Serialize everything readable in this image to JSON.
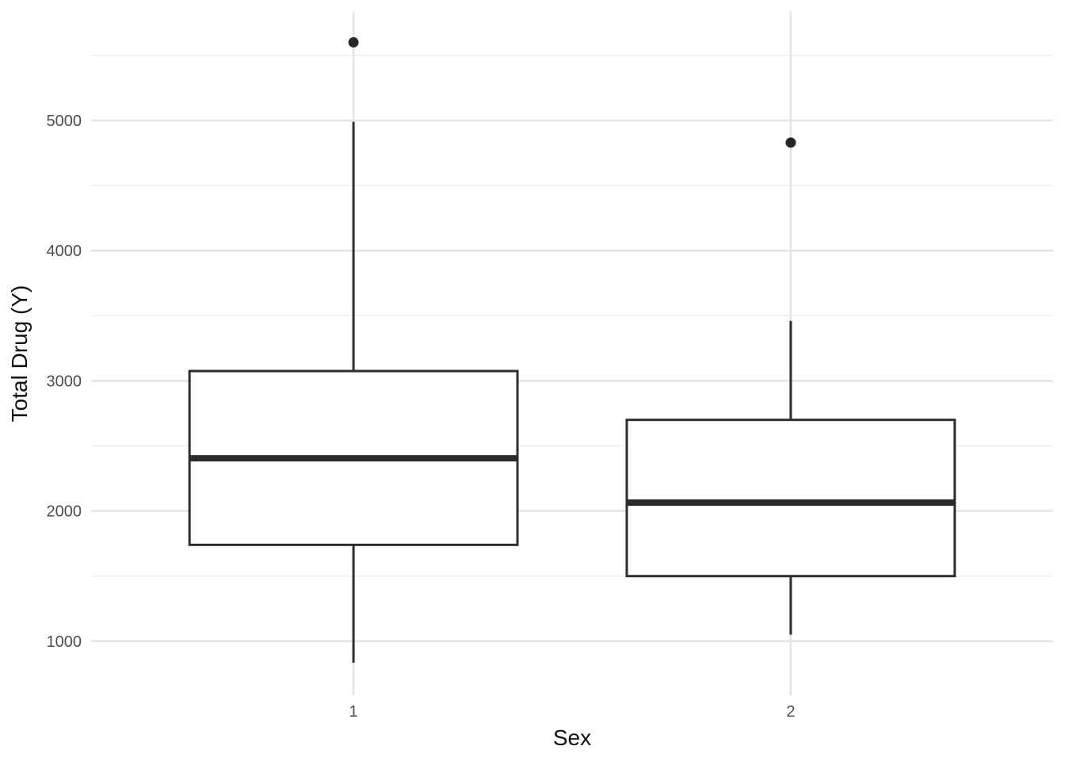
{
  "figure": {
    "kind": "ggplot2-style boxplot, theme_minimal, no title, no legend",
    "background": "#ffffff"
  },
  "chart_data": {
    "type": "box",
    "title": "",
    "xlabel": "Sex",
    "ylabel": "Total Drug (Y)",
    "categories": [
      "1",
      "2"
    ],
    "series": [
      {
        "name": "Sex 1",
        "category": "1",
        "whisker_low": 835,
        "q1": 1740,
        "median": 2405,
        "q3": 3075,
        "whisker_high": 4990,
        "outliers": [
          5600
        ]
      },
      {
        "name": "Sex 2",
        "category": "2",
        "whisker_low": 1050,
        "q1": 1500,
        "median": 2065,
        "q3": 2700,
        "whisker_high": 3460,
        "outliers": [
          4830
        ]
      }
    ],
    "y_ticks": [
      1000,
      2000,
      3000,
      4000,
      5000
    ],
    "y_tick_labels": [
      "1000",
      "2000",
      "3000",
      "4000",
      "5000"
    ],
    "y_minor_gridlines": [
      1500,
      2500,
      3500,
      4500,
      5500
    ],
    "ylim": [
      585,
      5840
    ],
    "grid": "horizontal major + minor gridlines; one vertical major gridline per category; no axis lines, no tick marks",
    "legend": "none"
  },
  "style": {
    "box_fill": "#ffffff",
    "box_stroke": "#2e2e2e",
    "median_stroke": "#2b2b2b",
    "outlier_fill": "#262626",
    "grid_major_color": "#e5e5e5",
    "grid_minor_color": "#efefef",
    "tick_text_color": "#4d4d4d",
    "axis_title_color": "#111111"
  }
}
